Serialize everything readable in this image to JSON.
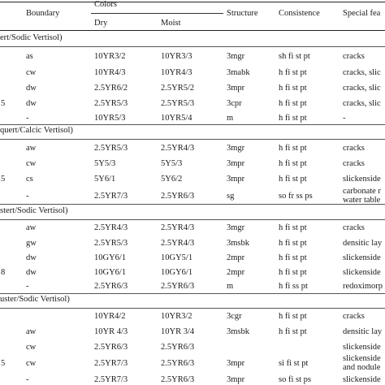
{
  "header": {
    "boundary": "Boundary",
    "colors": "Colors",
    "dry": "Dry",
    "moist": "Moist",
    "structure": "Structure",
    "consistence": "Consistence",
    "special": "Special fea"
  },
  "sections": [
    {
      "title": "ert/Sodic Vertisol)",
      "rows": [
        {
          "depth": "",
          "boundary": "as",
          "dry": "10YR3/2",
          "moist": "10YR3/3",
          "structure": "3mgr",
          "consistence": "sh fi st pt",
          "special": "cracks"
        },
        {
          "depth": "",
          "boundary": "cw",
          "dry": "10YR4/3",
          "moist": "10YR4/3",
          "structure": "3mabk",
          "consistence": "h fi st pt",
          "special": "cracks, slic"
        },
        {
          "depth": "",
          "boundary": "dw",
          "dry": "2.5YR6/2",
          "moist": "2.5YR5/2",
          "structure": "3mpr",
          "consistence": "h fi st pt",
          "special": "cracks, slic"
        },
        {
          "depth": "5",
          "boundary": "dw",
          "dry": "2.5YR5/3",
          "moist": "2.5YR5/3",
          "structure": "3cpr",
          "consistence": "h fi st pt",
          "special": "cracks, slic"
        },
        {
          "depth": "",
          "boundary": "-",
          "dry": "10YR5/3",
          "moist": "10YR5/4",
          "structure": "m",
          "consistence": "h fi st pt",
          "special": "-"
        }
      ]
    },
    {
      "title": "quert/Calcic Vertisol)",
      "rows": [
        {
          "depth": "",
          "boundary": "aw",
          "dry": "2.5YR5/3",
          "moist": "2.5YR4/3",
          "structure": "3mgr",
          "consistence": "h fi st pt",
          "special": "cracks"
        },
        {
          "depth": "",
          "boundary": "cw",
          "dry": "5Y5/3",
          "moist": "5Y5/3",
          "structure": "3mpr",
          "consistence": "h fi st pt",
          "special": "cracks"
        },
        {
          "depth": "5",
          "boundary": "cs",
          "dry": "5Y6/1",
          "moist": "5Y6/2",
          "structure": "3mpr",
          "consistence": "h fi st pt",
          "special": "slickenside"
        },
        {
          "depth": "",
          "boundary": "-",
          "dry": "2.5YR7/3",
          "moist": "2.5YR6/3",
          "structure": "sg",
          "consistence": "so fr ss ps",
          "special": "carbonate r",
          "special2": "water table"
        }
      ]
    },
    {
      "title": "stert/Sodic Vertisol)",
      "rows": [
        {
          "depth": "",
          "boundary": "aw",
          "dry": "2.5YR4/3",
          "moist": "2.5YR4/3",
          "structure": "3mgr",
          "consistence": "h fi st pt",
          "special": "cracks"
        },
        {
          "depth": "",
          "boundary": "gw",
          "dry": "2.5YR5/3",
          "moist": "2.5YR4/3",
          "structure": "3msbk",
          "consistence": "h fi st pt",
          "special": "densitic lay"
        },
        {
          "depth": "",
          "boundary": "dw",
          "dry": "10GY6/1",
          "moist": "10GY5/1",
          "structure": "2mpr",
          "consistence": "h fi st pt",
          "special": "slickenside"
        },
        {
          "depth": "8",
          "boundary": "dw",
          "dry": "10GY6/1",
          "moist": "10GY6/1",
          "structure": "2mpr",
          "consistence": "h fi st pt",
          "special": "slickenside"
        },
        {
          "depth": "",
          "boundary": "-",
          "dry": "2.5YR6/3",
          "moist": "2.5YR6/3",
          "structure": "m",
          "consistence": "h fi ss pt",
          "special": "redoximorp"
        }
      ]
    },
    {
      "title": "uster/Sodic Vertisol)",
      "rows": [
        {
          "depth": "",
          "boundary": "",
          "dry": "10YR4/2",
          "moist": "10YR3/2",
          "structure": "3cgr",
          "consistence": "h fi st pt",
          "special": "cracks"
        },
        {
          "depth": "",
          "boundary": "aw",
          "dry": "10YR 4/3",
          "moist": "10YR 3/4",
          "structure": "3msbk",
          "consistence": "h fi st pt",
          "special": "densitic lay"
        },
        {
          "depth": "",
          "boundary": "cw",
          "dry": "2.5YR6/3",
          "moist": "2.5YR6/3",
          "structure": "",
          "consistence": "",
          "special": "slickenside"
        },
        {
          "depth": "5",
          "boundary": "cw",
          "dry": "2.5YR7/3",
          "moist": "2.5YR6/3",
          "structure": "3mpr",
          "consistence": "si fi st pt",
          "special": "slickenside",
          "special2": "and nodule"
        },
        {
          "depth": "",
          "boundary": "-",
          "dry": "2.5YR7/3",
          "moist": "2.5YR6/3",
          "structure": "3mpr",
          "consistence": "so fi st ps",
          "special": "slickenside"
        }
      ]
    }
  ]
}
